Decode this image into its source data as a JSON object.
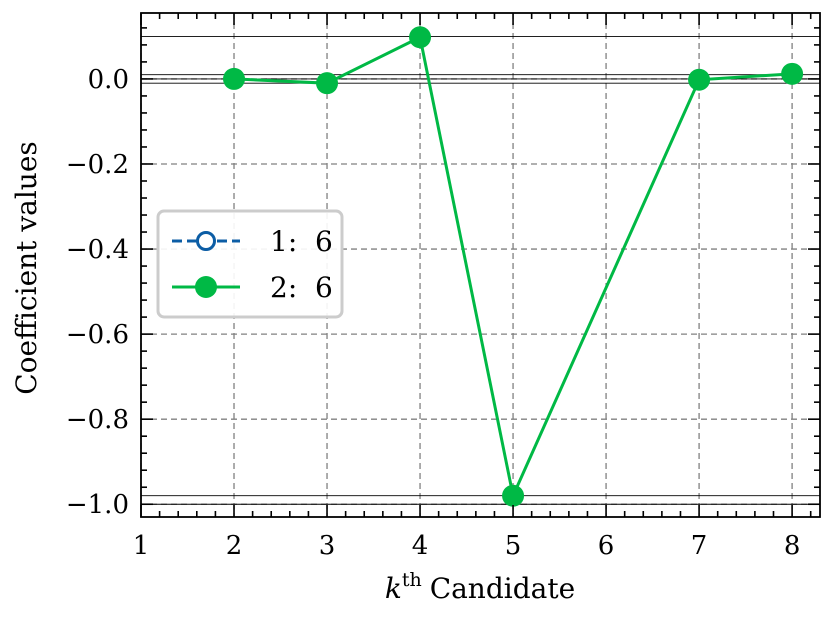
{
  "chart_data": {
    "type": "line",
    "title": "",
    "xlabel": "Candidate",
    "xlabel_prefix": "k",
    "xlabel_superscript": "th",
    "ylabel": "Coefficient values",
    "xlim": [
      1,
      8.3
    ],
    "ylim": [
      -1.03,
      0.155
    ],
    "x_ticks": [
      1,
      2,
      3,
      4,
      5,
      6,
      7,
      8
    ],
    "x_tick_labels": [
      "1",
      "2",
      "3",
      "4",
      "5",
      "6",
      "7",
      "8"
    ],
    "y_ticks": [
      -1.0,
      -0.8,
      -0.6,
      -0.4,
      -0.2,
      0.0
    ],
    "y_tick_labels": [
      "−1.0",
      "−0.8",
      "−0.6",
      "−0.4",
      "−0.2",
      "0.0"
    ],
    "grid": true,
    "reference_lines_y": [
      0.1,
      0.01,
      0.0,
      -0.01,
      -0.98,
      -1.0
    ],
    "legend_position": "center-left",
    "series": [
      {
        "name": "1:  6",
        "color": "#0c5da5",
        "linestyle": "dashed",
        "marker": "open-circle",
        "x": [],
        "y": []
      },
      {
        "name": "2:  6",
        "color": "#00b945",
        "linestyle": "solid",
        "marker": "filled-circle",
        "x": [
          2,
          3,
          4,
          5,
          7,
          8
        ],
        "y": [
          0.0,
          -0.01,
          0.098,
          -0.98,
          -0.002,
          0.012
        ]
      }
    ]
  }
}
